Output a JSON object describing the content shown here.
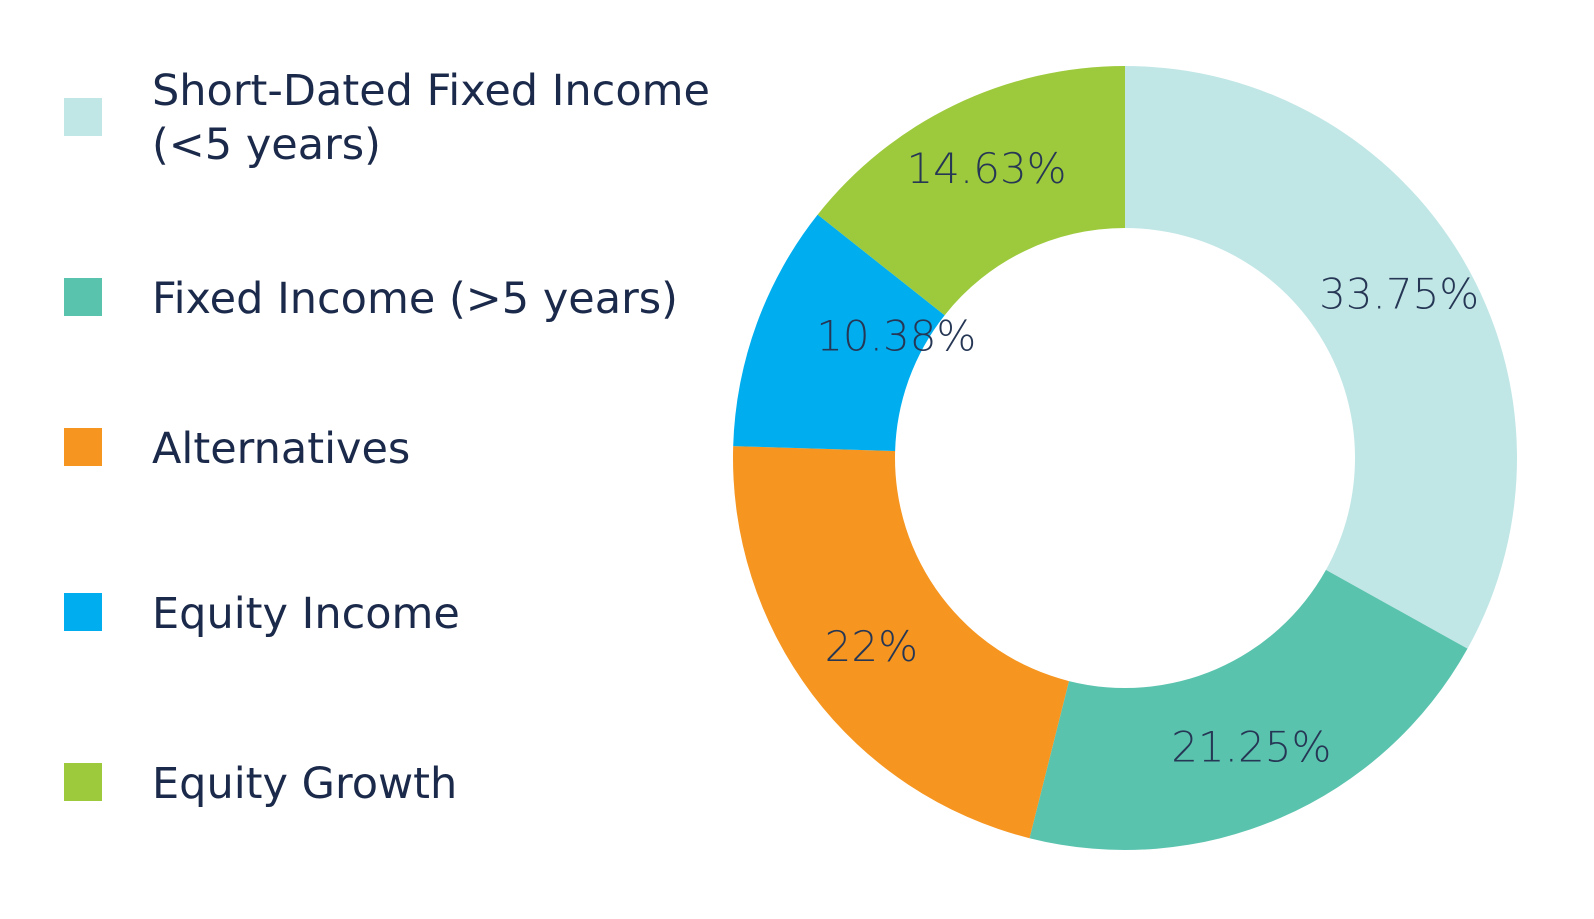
{
  "chart_data": {
    "type": "pie",
    "variant": "donut",
    "title": "",
    "legend_position": "left",
    "categories": [
      "Short-Dated Fixed Income\n(<5 years)",
      "Fixed Income (>5 years)",
      "Alternatives",
      "Equity Income",
      "Equity Growth"
    ],
    "values": [
      33.75,
      21.25,
      22,
      10.38,
      14.63
    ],
    "value_labels": [
      "33.75%",
      "21.25%",
      "22%",
      "10.38%",
      "14.63%"
    ],
    "colors": [
      "#c1e6e6",
      "#5ac3ae",
      "#f6951f",
      "#00aeef",
      "#9dca3c"
    ]
  }
}
